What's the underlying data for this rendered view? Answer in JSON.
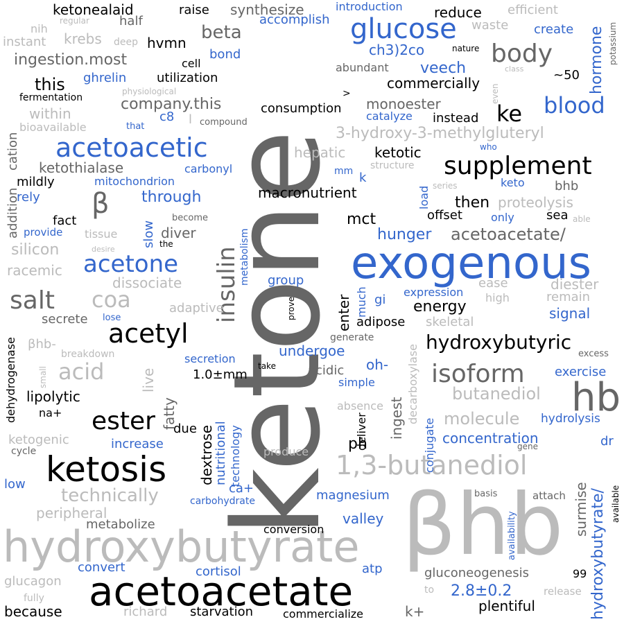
{
  "word_cloud": {
    "words": [
      "ketone",
      "βhb",
      "exogenous",
      "hydroxybutyrate",
      "acetoacetate",
      "ketosis",
      "1,3-butanediol",
      "glucose",
      "hb",
      "insulin",
      "acetoacetic",
      "supplement",
      "acetyl",
      "body",
      "blood",
      "ester",
      "isoform",
      "salt",
      "acetone",
      "hydroxybutyric",
      "β",
      "ke",
      "coa",
      "acid",
      "technically",
      "3-hydroxy-3-methylgluteryl",
      "hormone",
      "hydroxybutyrate/",
      "acetoacetate/",
      "butanediol",
      "molecule",
      "ketonealaid",
      "synthesize",
      "beta",
      "raise",
      "reduce",
      "introduction",
      "efficient",
      "nih",
      "regular",
      "half",
      "accomplish",
      "waste",
      "create",
      "potassium",
      "instant",
      "krebs",
      "deep",
      "hvmn",
      "ch3)2co",
      "nature",
      "cell",
      "bond",
      "ingestion.most",
      "abundant",
      "veech",
      "class",
      "~50",
      "this",
      "ghrelin",
      "utilization",
      "commercially",
      "physiological",
      "even",
      "fermentation",
      ">",
      "company.this",
      "monoester",
      "within",
      "consumption",
      "catalyze",
      "instead",
      "c8",
      "l",
      "compound",
      "bioavailable",
      "that",
      "cation",
      "addition",
      "hepatic",
      "ketotic",
      "who",
      "ketothialase",
      "carbonyl",
      "mm",
      "structure",
      "mildly",
      "mitochondrion",
      "k",
      "series",
      "keto",
      "bhb",
      "rely",
      "through",
      "macronutrient",
      "load",
      "then",
      "proteolysis",
      "fact",
      "become",
      "slow",
      "mct",
      "offset",
      "only",
      "sea",
      "able",
      "provide",
      "tissue",
      "diver",
      "metabolism",
      "hunger",
      "desire",
      "the",
      "silicon",
      "racemic",
      "dissociate",
      "group",
      "ease",
      "diester",
      "expression",
      "high",
      "remain",
      "much",
      "gi",
      "adaptive",
      "prove",
      "energy",
      "signal",
      "secrete",
      "lose",
      "enter",
      "adipose",
      "skeletal",
      "dehydrogenase",
      "βhb-",
      "generate",
      "breakdown",
      "undergoe",
      "secretion",
      "take",
      "excess",
      "small",
      "live",
      "acidic",
      "oh-",
      "decarboxylase",
      "exercise",
      "1.0±mm",
      "simple",
      "fatty",
      "ingest",
      "lipolytic",
      "absence",
      "na+",
      "technology",
      "deliver",
      "conjugate",
      "hydrolysis",
      "increase",
      "due",
      "concentration",
      "dr",
      "ketogenic",
      "cycle",
      "dextrose",
      "nutritional",
      "produce",
      "gene",
      "available",
      "ph",
      "low",
      "ca+",
      "basis",
      "attach",
      "availability",
      "magnesium",
      "carbohydrate",
      "surmise",
      "peripheral",
      "valley",
      "metabolize",
      "conversion",
      "convert",
      "atp",
      "glucagon",
      "cortisol",
      "gluconeogenesis",
      "99",
      "fully",
      "to",
      "2.8±0.2",
      "release",
      "because",
      "richard",
      "starvation",
      "commercialize",
      "k+",
      "plentiful"
    ],
    "colors": {
      "black": "#000000",
      "dark_gray": "#666666",
      "light_gray": "#bbbbbb",
      "blue": "#3366cc",
      "background": "#ffffff"
    }
  }
}
